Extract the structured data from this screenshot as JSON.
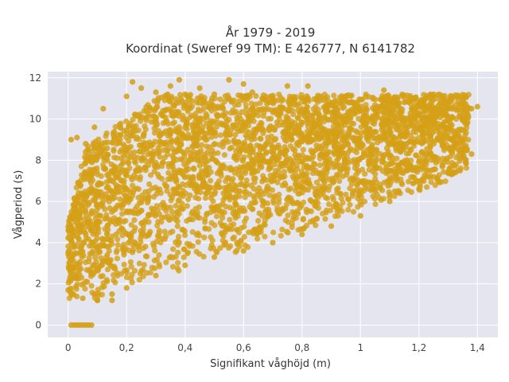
{
  "chart_data": {
    "type": "scatter",
    "title_line1": "År 1979 - 2019",
    "title_line2": "Koordinat (Sweref 99 TM): E 426777, N 6141782",
    "xlabel": "Signifikant våghöjd (m)",
    "ylabel": "Vågperiod (s)",
    "xlim": [
      -0.07,
      1.47
    ],
    "ylim": [
      -0.6,
      12.3
    ],
    "x_ticks": [
      0,
      0.2,
      0.4,
      0.6,
      0.8,
      1,
      1.2,
      1.4
    ],
    "x_tick_labels": [
      "0",
      "0,2",
      "0,4",
      "0,6",
      "0,8",
      "1",
      "1,2",
      "1,4"
    ],
    "y_ticks": [
      0,
      2,
      4,
      6,
      8,
      10,
      12
    ],
    "y_tick_labels": [
      "0",
      "2",
      "4",
      "6",
      "8",
      "10",
      "12"
    ],
    "grid": true,
    "legend": "none",
    "point_color": "#D4A017",
    "plot_background": "#E5E5EF",
    "series": [
      {
        "points": [
          [
            0.01,
            0
          ],
          [
            0.02,
            0
          ],
          [
            0.03,
            0
          ],
          [
            0.04,
            0
          ],
          [
            0.05,
            0
          ],
          [
            0.06,
            0
          ],
          [
            0.07,
            0
          ],
          [
            0.08,
            0
          ],
          [
            0.0,
            1.7
          ],
          [
            0.01,
            9.0
          ],
          [
            0.03,
            9.1
          ],
          [
            0.05,
            1.3
          ],
          [
            0.06,
            8.8
          ],
          [
            0.09,
            9.6
          ],
          [
            0.1,
            1.2
          ],
          [
            0.12,
            10.5
          ],
          [
            0.15,
            1.2
          ],
          [
            0.2,
            11.1
          ],
          [
            0.22,
            11.8
          ],
          [
            0.25,
            11.5
          ],
          [
            0.3,
            11.3
          ],
          [
            0.35,
            11.6
          ],
          [
            0.38,
            11.9
          ],
          [
            0.4,
            11.2
          ],
          [
            0.45,
            11.5
          ],
          [
            0.5,
            11.2
          ],
          [
            0.55,
            11.9
          ],
          [
            0.6,
            11.7
          ],
          [
            0.63,
            11.3
          ],
          [
            0.7,
            11.0
          ],
          [
            0.75,
            11.6
          ],
          [
            0.8,
            11.0
          ],
          [
            0.82,
            11.6
          ],
          [
            0.88,
            11.0
          ],
          [
            0.92,
            10.5
          ],
          [
            0.97,
            10.8
          ],
          [
            1.02,
            10.5
          ],
          [
            1.08,
            11.4
          ],
          [
            1.13,
            10.6
          ],
          [
            1.18,
            11.0
          ],
          [
            1.2,
            10.3
          ],
          [
            1.25,
            11.2
          ],
          [
            1.3,
            10.5
          ],
          [
            1.35,
            10.0
          ],
          [
            1.38,
            10.5
          ],
          [
            1.4,
            10.6
          ],
          [
            1.38,
            8.3
          ],
          [
            1.36,
            7.9
          ],
          [
            1.3,
            7.4
          ],
          [
            1.2,
            6.6
          ],
          [
            1.1,
            6.0
          ],
          [
            1.0,
            5.3
          ],
          [
            0.9,
            4.8
          ],
          [
            0.8,
            4.4
          ],
          [
            0.7,
            4.0
          ],
          [
            0.6,
            3.6
          ],
          [
            0.5,
            3.3
          ],
          [
            0.4,
            2.9
          ],
          [
            0.3,
            2.4
          ],
          [
            0.2,
            1.8
          ],
          [
            0.15,
            1.5
          ],
          [
            0.1,
            1.2
          ]
        ]
      }
    ]
  }
}
